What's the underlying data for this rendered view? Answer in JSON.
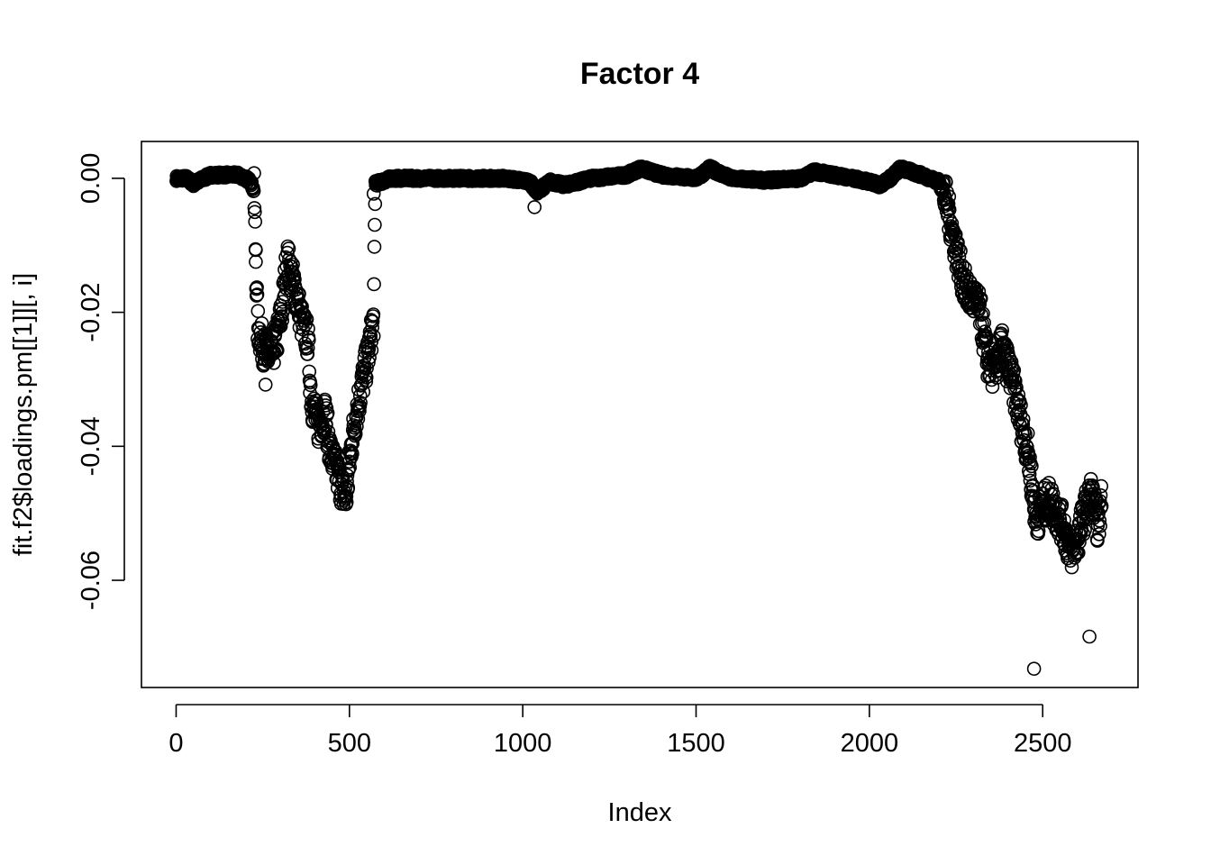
{
  "chart_data": {
    "type": "scatter",
    "title": "Factor 4",
    "xlabel": "Index",
    "ylabel": "fit.f2$loadings.pm[[1]][, i]",
    "xlim": [
      -100,
      2775
    ],
    "ylim": [
      -0.076,
      0.0055
    ],
    "x_ticks": [
      0,
      500,
      1000,
      1500,
      2000,
      2500
    ],
    "x_tick_labels": [
      "0",
      "500",
      "1000",
      "1500",
      "2000",
      "2500"
    ],
    "y_ticks": [
      0.0,
      -0.02,
      -0.04,
      -0.06
    ],
    "y_tick_labels": [
      "0.00",
      "-0.02",
      "-0.04",
      "-0.06"
    ],
    "grid": false,
    "marker": "open-circle",
    "color": "#000000",
    "trend": [
      [
        0,
        0.0
      ],
      [
        30,
        0.0
      ],
      [
        50,
        -0.0008
      ],
      [
        80,
        0.0
      ],
      [
        100,
        0.0005
      ],
      [
        150,
        0.0005
      ],
      [
        180,
        0.0005
      ],
      [
        200,
        0.0
      ],
      [
        215,
        -0.0005
      ],
      [
        225,
        -0.002
      ],
      [
        235,
        -0.022
      ],
      [
        250,
        -0.025
      ],
      [
        270,
        -0.027
      ],
      [
        290,
        -0.024
      ],
      [
        305,
        -0.02
      ],
      [
        320,
        -0.012
      ],
      [
        330,
        -0.014
      ],
      [
        345,
        -0.017
      ],
      [
        365,
        -0.022
      ],
      [
        380,
        -0.024
      ],
      [
        390,
        -0.033
      ],
      [
        410,
        -0.037
      ],
      [
        430,
        -0.035
      ],
      [
        445,
        -0.041
      ],
      [
        470,
        -0.045
      ],
      [
        490,
        -0.048
      ],
      [
        505,
        -0.04
      ],
      [
        520,
        -0.035
      ],
      [
        535,
        -0.031
      ],
      [
        555,
        -0.026
      ],
      [
        570,
        -0.021
      ],
      [
        575,
        -0.0008
      ],
      [
        620,
        0.0
      ],
      [
        700,
        0.0
      ],
      [
        850,
        0.0
      ],
      [
        950,
        0.0
      ],
      [
        1020,
        -0.0005
      ],
      [
        1040,
        -0.002
      ],
      [
        1080,
        -0.0005
      ],
      [
        1120,
        -0.001
      ],
      [
        1200,
        0.0
      ],
      [
        1300,
        0.0005
      ],
      [
        1340,
        0.0015
      ],
      [
        1400,
        0.0005
      ],
      [
        1500,
        0.0
      ],
      [
        1540,
        0.0015
      ],
      [
        1600,
        0.0
      ],
      [
        1700,
        -0.0003
      ],
      [
        1800,
        0.0
      ],
      [
        1840,
        0.001
      ],
      [
        1900,
        0.0005
      ],
      [
        2000,
        -0.0005
      ],
      [
        2030,
        -0.001
      ],
      [
        2060,
        0.0
      ],
      [
        2090,
        0.0015
      ],
      [
        2120,
        0.001
      ],
      [
        2150,
        0.0005
      ],
      [
        2200,
        -0.0005
      ],
      [
        2220,
        -0.003
      ],
      [
        2240,
        -0.008
      ],
      [
        2260,
        -0.013
      ],
      [
        2280,
        -0.017
      ],
      [
        2300,
        -0.018
      ],
      [
        2320,
        -0.02
      ],
      [
        2340,
        -0.027
      ],
      [
        2360,
        -0.029
      ],
      [
        2380,
        -0.025
      ],
      [
        2400,
        -0.028
      ],
      [
        2420,
        -0.032
      ],
      [
        2440,
        -0.037
      ],
      [
        2455,
        -0.04
      ],
      [
        2470,
        -0.046
      ],
      [
        2480,
        -0.051
      ],
      [
        2500,
        -0.049
      ],
      [
        2520,
        -0.048
      ],
      [
        2540,
        -0.05
      ],
      [
        2560,
        -0.052
      ],
      [
        2580,
        -0.056
      ],
      [
        2600,
        -0.054
      ],
      [
        2620,
        -0.05
      ],
      [
        2640,
        -0.047
      ],
      [
        2660,
        -0.052
      ],
      [
        2670,
        -0.048
      ]
    ],
    "n_points": 2670,
    "outliers": [
      {
        "x": 230,
        "y": -0.0107
      },
      {
        "x": 232,
        "y": -0.0165
      },
      {
        "x": 258,
        "y": -0.0308
      },
      {
        "x": 570,
        "y": -0.0023
      },
      {
        "x": 1034,
        "y": -0.0043
      },
      {
        "x": 2475,
        "y": -0.0732
      },
      {
        "x": 2635,
        "y": -0.0684
      }
    ]
  }
}
